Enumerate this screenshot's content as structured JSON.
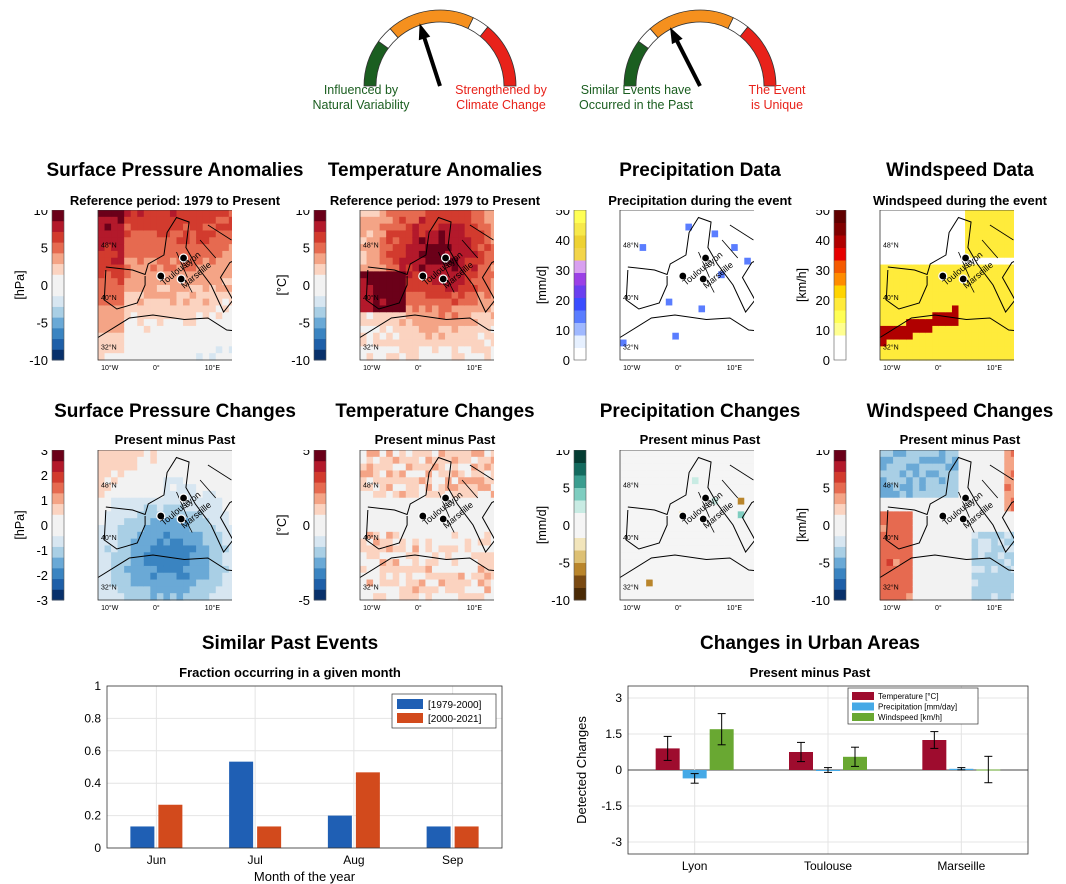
{
  "gauges": [
    {
      "left_label": "Influenced by\nNatural Variability",
      "right_label": "Strengthened by\nClimate Change",
      "left_color": "#1b5e20",
      "right_color": "#e8221a",
      "needle_fraction": 0.4
    },
    {
      "left_label": "Similar Events have\nOccurred in the Past",
      "right_label": "The Event\nis Unique",
      "left_color": "#1b5e20",
      "right_color": "#e8221a",
      "needle_fraction": 0.35
    }
  ],
  "map_axis": {
    "lat_ticks": [
      "48°N",
      "40°N",
      "32°N"
    ],
    "lon_ticks": [
      "10°W",
      "0°",
      "10°E"
    ],
    "cities": [
      "Lyon",
      "Toulouse",
      "Marseille"
    ]
  },
  "map_panels": [
    {
      "title": "Surface Pressure Anomalies",
      "subtitle": "Reference period: 1979 to Present",
      "unit": "[hPa]",
      "ticks": [
        "10",
        "5",
        "0",
        "-5",
        "-10"
      ],
      "palette": "rdbu",
      "field": "pressure_anom"
    },
    {
      "title": "Temperature Anomalies",
      "subtitle": "Reference period: 1979 to Present",
      "unit": "[°C]",
      "ticks": [
        "10",
        "5",
        "0",
        "-5",
        "-10"
      ],
      "palette": "rdbu",
      "field": "temp_anom"
    },
    {
      "title": "Precipitation Data",
      "subtitle": "Precipitation during the event",
      "unit": "[mm/d]",
      "ticks": [
        "50",
        "40",
        "30",
        "20",
        "10",
        "0"
      ],
      "palette": "precip",
      "field": "precip"
    },
    {
      "title": "Windspeed Data",
      "subtitle": "Windspeed during the event",
      "unit": "[km/h]",
      "ticks": [
        "50",
        "40",
        "30",
        "20",
        "10",
        "0"
      ],
      "palette": "wind",
      "field": "wind"
    },
    {
      "title": "Surface Pressure Changes",
      "subtitle": "Present minus Past",
      "unit": "[hPa]",
      "ticks": [
        "3",
        "2",
        "1",
        "0",
        "-1",
        "-2",
        "-3"
      ],
      "palette": "rdbu",
      "field": "pressure_chg"
    },
    {
      "title": "Temperature Changes",
      "subtitle": "Present minus Past",
      "unit": "[°C]",
      "ticks": [
        "5",
        "0",
        "-5"
      ],
      "palette": "rdbu",
      "field": "temp_chg"
    },
    {
      "title": "Precipitation Changes",
      "subtitle": "Present minus Past",
      "unit": "[mm/d]",
      "ticks": [
        "10",
        "5",
        "0",
        "-5",
        "-10"
      ],
      "palette": "brbg",
      "field": "precip_chg"
    },
    {
      "title": "Windspeed Changes",
      "subtitle": "Present minus Past",
      "unit": "[km/h]",
      "ticks": [
        "10",
        "5",
        "0",
        "-5",
        "-10"
      ],
      "palette": "rdbu",
      "field": "wind_chg"
    }
  ],
  "chart_data": [
    {
      "type": "bar",
      "title": "Similar Past Events",
      "subtitle": "Fraction occurring in a given month",
      "xlabel": "Month of the year",
      "ylabel": "",
      "ylim": [
        0,
        1
      ],
      "yticks": [
        0,
        0.2,
        0.4,
        0.6,
        0.8,
        1
      ],
      "categories": [
        "Jun",
        "Jul",
        "Aug",
        "Sep"
      ],
      "series": [
        {
          "name": "[1979-2000]",
          "color": "#1f5fb4",
          "values": [
            0.133,
            0.533,
            0.2,
            0.133
          ]
        },
        {
          "name": "[2000-2021]",
          "color": "#d24a1c",
          "values": [
            0.267,
            0.133,
            0.467,
            0.133
          ]
        }
      ],
      "legend": "top-right",
      "grid": true
    },
    {
      "type": "bar",
      "title": "Changes in Urban Areas",
      "subtitle": "Present minus Past",
      "xlabel": "",
      "ylabel": "Detected Changes",
      "ylim": [
        -3.5,
        3.5
      ],
      "yticks": [
        3,
        1.5,
        0,
        -1.5,
        -3
      ],
      "categories": [
        "Lyon",
        "Toulouse",
        "Marseille"
      ],
      "series": [
        {
          "name": "Temperature [°C]",
          "color": "#9e0c2e",
          "values": [
            0.9,
            0.75,
            1.25
          ],
          "errors": [
            0.5,
            0.4,
            0.35
          ]
        },
        {
          "name": "Precipitation [mm/day]",
          "color": "#45a9e6",
          "values": [
            -0.35,
            0,
            0.05
          ],
          "errors": [
            0.2,
            0.1,
            0.05
          ]
        },
        {
          "name": "Windspeed [km/h]",
          "color": "#69a832",
          "values": [
            1.7,
            0.55,
            0.02
          ],
          "errors": [
            0.65,
            0.4,
            0.55
          ]
        }
      ],
      "legend": "top",
      "grid": true
    }
  ]
}
